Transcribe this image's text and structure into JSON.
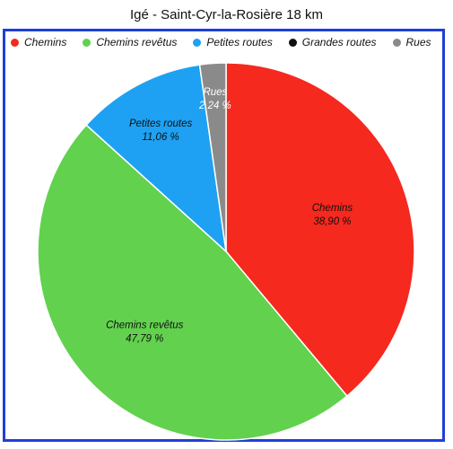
{
  "chart_data": {
    "type": "pie",
    "title": "Igé - Saint-Cyr-la-Rosière 18 km",
    "legend_position": "top",
    "series": [
      {
        "name": "Chemins",
        "value": 38.9,
        "value_label": "38,90 %",
        "color": "#f5291e"
      },
      {
        "name": "Chemins revêtus",
        "value": 47.79,
        "value_label": "47,79 %",
        "color": "#62d14e"
      },
      {
        "name": "Petites routes",
        "value": 11.06,
        "value_label": "11,06 %",
        "color": "#1ea1f2"
      },
      {
        "name": "Grandes routes",
        "value": 0.0,
        "value_label": "",
        "color": "#111111"
      },
      {
        "name": "Rues",
        "value": 2.24,
        "value_label": "2,24 %",
        "color": "#8a8a8a"
      }
    ]
  }
}
